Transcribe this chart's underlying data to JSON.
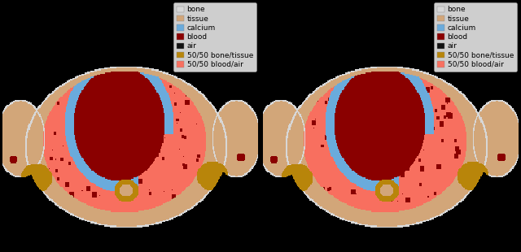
{
  "legend_labels": [
    "bone",
    "tissue",
    "calcium",
    "blood",
    "air",
    "50/50 bone/tissue",
    "50/50 blood/air"
  ],
  "legend_colors": [
    "#d8d8d8",
    "#d2a679",
    "#6aabdc",
    "#8b0000",
    "#111111",
    "#b8860b",
    "#f87060"
  ],
  "background_color": "#000000",
  "fig_width": 6.4,
  "fig_height": 3.1,
  "dpi": 100,
  "legend_fontsize": 6.5,
  "legend_marker_size": 10
}
